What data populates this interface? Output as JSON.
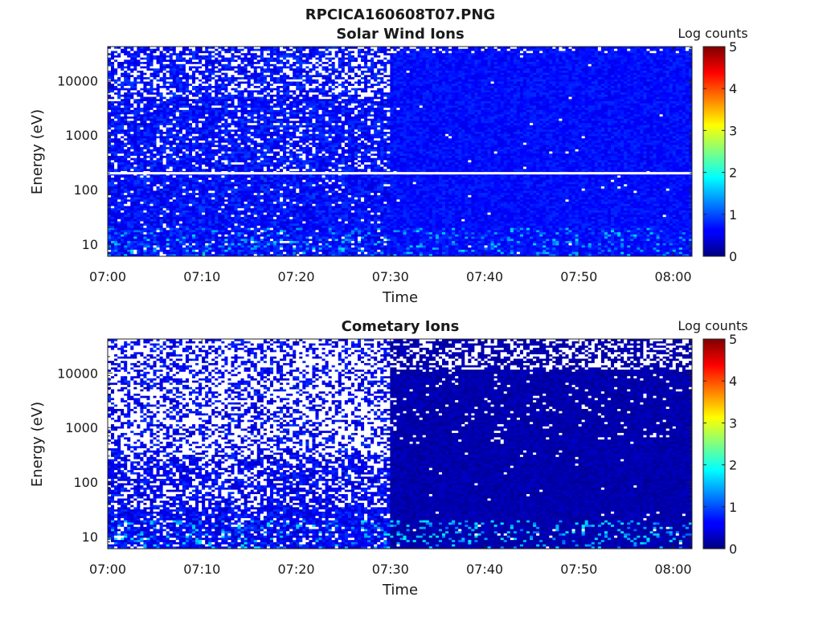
{
  "figure": {
    "title": "RPCICA160608T07.PNG"
  },
  "chart_data": [
    {
      "type": "heatmap",
      "title": "Solar Wind Ions",
      "xlabel": "Time",
      "ylabel": "Energy (eV)",
      "x_scale": "time",
      "xlim": [
        "07:00",
        "08:02"
      ],
      "x_ticks": [
        "07:00",
        "07:10",
        "07:20",
        "07:30",
        "07:40",
        "07:50",
        "08:00"
      ],
      "y_scale": "log",
      "ylim": [
        6,
        42000
      ],
      "y_ticks": [
        {
          "value": 10,
          "label": "10"
        },
        {
          "value": 100,
          "label": "100"
        },
        {
          "value": 1000,
          "label": "1000"
        },
        {
          "value": 10000,
          "label": "10000"
        }
      ],
      "colorbar": {
        "label": "Log counts",
        "range": [
          0,
          5
        ],
        "ticks": [
          "0",
          "1",
          "2",
          "3",
          "4",
          "5"
        ],
        "colormap": "jet"
      },
      "gap_line_energy_ev": 200,
      "regime_change_time": "07:30",
      "typical_log_counts": {
        "before_07_30": 0.4,
        "after_07_30": 0.5,
        "low_energy_peaks": 1.7
      }
    },
    {
      "type": "heatmap",
      "title": "Cometary Ions",
      "xlabel": "Time",
      "ylabel": "Energy (eV)",
      "x_scale": "time",
      "xlim": [
        "07:00",
        "08:02"
      ],
      "x_ticks": [
        "07:00",
        "07:10",
        "07:20",
        "07:30",
        "07:40",
        "07:50",
        "08:00"
      ],
      "y_scale": "log",
      "ylim": [
        6,
        42000
      ],
      "y_ticks": [
        {
          "value": 10,
          "label": "10"
        },
        {
          "value": 100,
          "label": "100"
        },
        {
          "value": 1000,
          "label": "1000"
        },
        {
          "value": 10000,
          "label": "10000"
        }
      ],
      "colorbar": {
        "label": "Log counts",
        "range": [
          0,
          5
        ],
        "ticks": [
          "0",
          "1",
          "2",
          "3",
          "4",
          "5"
        ],
        "colormap": "jet"
      },
      "regime_change_time": "07:30",
      "typical_log_counts": {
        "before_07_30": 0.3,
        "after_07_30": 0.1,
        "low_energy_peaks": 1.8
      }
    }
  ]
}
